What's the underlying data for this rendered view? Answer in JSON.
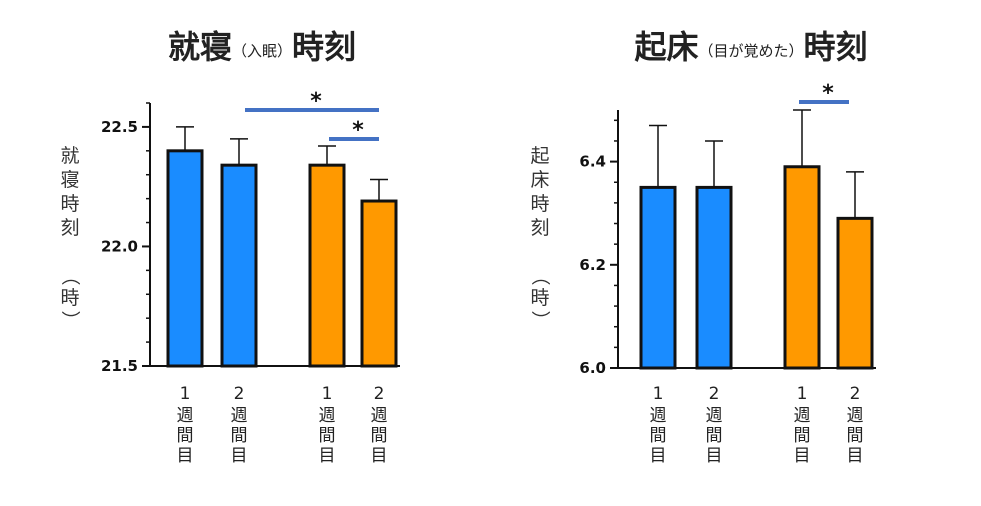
{
  "chart_data": [
    {
      "type": "bar",
      "title": "就寝",
      "title_paren": "（入眠）",
      "title_suffix": "時刻",
      "ylabel": "就寝時刻",
      "ylabel_unit": "（時）",
      "ylim": [
        21.5,
        22.6
      ],
      "yticks": [
        21.5,
        22.0,
        22.5
      ],
      "ytick_labels": [
        "21.5",
        "22.0",
        "22.5"
      ],
      "categories": [
        {
          "num": "1",
          "chars": [
            "週",
            "間",
            "目"
          ]
        },
        {
          "num": "2",
          "chars": [
            "週",
            "間",
            "目"
          ]
        },
        {
          "num": "1",
          "chars": [
            "週",
            "間",
            "目"
          ]
        },
        {
          "num": "2",
          "chars": [
            "週",
            "間",
            "目"
          ]
        }
      ],
      "values": [
        22.4,
        22.34,
        22.34,
        22.19
      ],
      "errors": [
        0.1,
        0.11,
        0.08,
        0.09
      ],
      "colors": [
        "#1a8cff",
        "#1a8cff",
        "#ff9900",
        "#ff9900"
      ],
      "significance": [
        {
          "from": 1,
          "to": 3,
          "label": "*"
        },
        {
          "from": 2,
          "to": 3,
          "label": "*"
        }
      ]
    },
    {
      "type": "bar",
      "title": "起床",
      "title_paren": "（目が覚めた）",
      "title_suffix": "時刻",
      "ylabel": "起床時刻",
      "ylabel_unit": "（時）",
      "ylim": [
        6.0,
        6.5
      ],
      "yticks": [
        6.0,
        6.2,
        6.4
      ],
      "ytick_labels": [
        "6.0",
        "6.2",
        "6.4"
      ],
      "categories": [
        {
          "num": "1",
          "chars": [
            "週",
            "間",
            "目"
          ]
        },
        {
          "num": "2",
          "chars": [
            "週",
            "間",
            "目"
          ]
        },
        {
          "num": "1",
          "chars": [
            "週",
            "間",
            "目"
          ]
        },
        {
          "num": "2",
          "chars": [
            "週",
            "間",
            "目"
          ]
        }
      ],
      "values": [
        6.35,
        6.35,
        6.39,
        6.29
      ],
      "errors": [
        0.12,
        0.09,
        0.11,
        0.09
      ],
      "colors": [
        "#1a8cff",
        "#1a8cff",
        "#ff9900",
        "#ff9900"
      ],
      "significance": [
        {
          "from": 2,
          "to": 3,
          "label": "*"
        }
      ]
    }
  ],
  "colors": {
    "week_bar_blue": "#1a8cff",
    "week_bar_orange": "#ff9900",
    "significance_line": "#4472c4"
  }
}
